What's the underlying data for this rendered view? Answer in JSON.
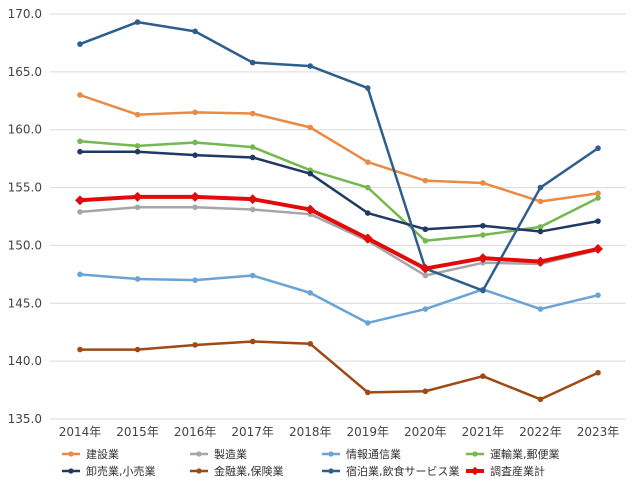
{
  "chart_data": {
    "type": "line",
    "x": [
      "2014年",
      "2015年",
      "2016年",
      "2017年",
      "2018年",
      "2019年",
      "2020年",
      "2021年",
      "2022年",
      "2023年"
    ],
    "ylim": [
      135.0,
      170.0
    ],
    "yticks": [
      "135.0",
      "140.0",
      "145.0",
      "150.0",
      "155.0",
      "160.0",
      "165.0",
      "170.0"
    ],
    "grid": true,
    "legend_position": "bottom",
    "series": [
      {
        "name": "建設業",
        "color": "#e98a45",
        "values": [
          163.0,
          161.3,
          161.5,
          161.4,
          160.2,
          157.2,
          155.6,
          155.4,
          153.8,
          154.5
        ]
      },
      {
        "name": "製造業",
        "color": "#a6a6a6",
        "values": [
          152.9,
          153.3,
          153.3,
          153.1,
          152.7,
          150.4,
          147.4,
          148.5,
          148.4,
          149.6
        ]
      },
      {
        "name": "情報通信業",
        "color": "#6aa3d6",
        "values": [
          147.5,
          147.1,
          147.0,
          147.4,
          145.9,
          143.3,
          144.5,
          146.2,
          144.5,
          145.7
        ]
      },
      {
        "name": "運輸業,郵便業",
        "color": "#74b84f",
        "values": [
          159.0,
          158.6,
          158.9,
          158.5,
          156.5,
          155.0,
          150.4,
          150.9,
          151.6,
          154.1
        ]
      },
      {
        "name": "卸売業,小売業",
        "color": "#203864",
        "values": [
          158.1,
          158.1,
          157.8,
          157.6,
          156.2,
          152.8,
          151.4,
          151.7,
          151.2,
          152.1
        ]
      },
      {
        "name": "金融業,保険業",
        "color": "#9e4a14",
        "values": [
          141.0,
          141.0,
          141.4,
          141.7,
          141.5,
          137.3,
          137.4,
          138.7,
          136.7,
          139.0
        ]
      },
      {
        "name": "宿泊業,飲食サービス業",
        "color": "#2e5e8e",
        "values": [
          167.4,
          169.3,
          168.5,
          165.8,
          165.5,
          163.6,
          148.0,
          146.1,
          155.0,
          158.4
        ]
      },
      {
        "name": "調査産業計",
        "color": "#e30a0a",
        "values": [
          153.9,
          154.2,
          154.2,
          154.0,
          153.1,
          150.6,
          148.0,
          148.9,
          148.6,
          149.7
        ]
      }
    ]
  }
}
